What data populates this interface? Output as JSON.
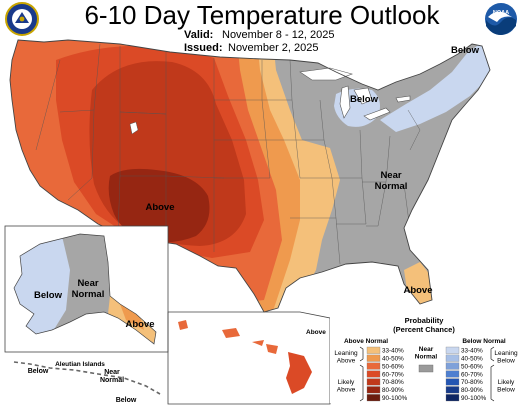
{
  "header": {
    "title": "6-10 Day Temperature Outlook",
    "valid_label": "Valid:",
    "valid_value": "November 8 - 12, 2025",
    "issued_label": "Issued:",
    "issued_value": "November 2, 2025"
  },
  "logos": {
    "left": {
      "icon": "doc-seal-icon",
      "text": "DEPARTMENT OF COMMERCE"
    },
    "right": {
      "icon": "noaa-logo-icon",
      "text": "NOAA"
    }
  },
  "map": {
    "labels": {
      "below_northeast": "Below",
      "below_great_lakes": "Below",
      "near_normal_east": "Near\nNormal",
      "above_southwest": "Above",
      "above_florida": "Above",
      "below_alaska": "Below",
      "near_normal_alaska": "Near\nNormal",
      "above_alaska_panhandle": "Above",
      "above_hawaii": "Above",
      "aleutian_islands": "Aleutian Islands",
      "near_normal_aleutians": "Near\nNormal",
      "below_aleutians_west": "Below",
      "below_aleutians_east": "Below"
    }
  },
  "legend": {
    "title_line1": "Probability",
    "title_line2": "(Percent Chance)",
    "above_header": "Above Normal",
    "below_header": "Below Normal",
    "near_header": "Near\nNormal",
    "leaning_above": "Leaning\nAbove",
    "likely_above": "Likely\nAbove",
    "leaning_below": "Leaning\nBelow",
    "likely_below": "Likely\nBelow",
    "above_categories": [
      {
        "label": "33-40%",
        "color": "#f4c07a"
      },
      {
        "label": "40-50%",
        "color": "#ef9a4e"
      },
      {
        "label": "50-60%",
        "color": "#e8693a"
      },
      {
        "label": "60-70%",
        "color": "#db4a26"
      },
      {
        "label": "70-80%",
        "color": "#c0391b"
      },
      {
        "label": "80-90%",
        "color": "#962612"
      },
      {
        "label": "90-100%",
        "color": "#6b1d0f"
      }
    ],
    "below_categories": [
      {
        "label": "33-40%",
        "color": "#c9d7ef"
      },
      {
        "label": "40-50%",
        "color": "#a7bfe6"
      },
      {
        "label": "50-60%",
        "color": "#7fa1d9"
      },
      {
        "label": "60-70%",
        "color": "#4f7fd0"
      },
      {
        "label": "70-80%",
        "color": "#2456b3"
      },
      {
        "label": "80-90%",
        "color": "#173b8a"
      },
      {
        "label": "90-100%",
        "color": "#0e2563"
      }
    ],
    "near_color": "#9a9a9a"
  },
  "colors": {
    "near_normal": "#a6a6a6",
    "above_33_40": "#f4c07a",
    "above_40_50": "#ef9a4e",
    "above_50_60": "#e8693a",
    "above_60_70": "#db4a26",
    "above_70_80": "#c0391b",
    "above_80_90": "#962612",
    "below_33_40": "#c9d7ef",
    "ocean": "#ffffff",
    "border": "#555555"
  }
}
